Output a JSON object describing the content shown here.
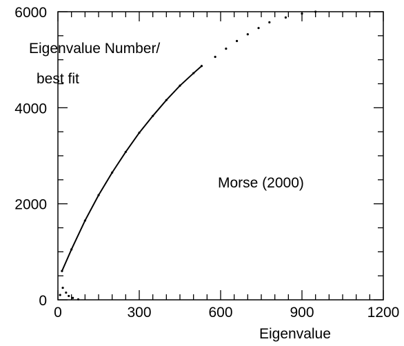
{
  "chart_data": {
    "type": "scatter",
    "title": "",
    "xlabel": "Eigenvalue",
    "ylabel": "",
    "xlim": [
      0,
      1200
    ],
    "ylim": [
      0,
      6000
    ],
    "x_ticks": [
      0,
      300,
      600,
      900,
      1200
    ],
    "y_ticks": [
      0,
      2000,
      4000,
      6000
    ],
    "x_tick_labels": [
      "0",
      "300",
      "600",
      "900",
      "1200"
    ],
    "y_tick_labels": [
      "0",
      "2000",
      "4000",
      "6000"
    ],
    "grid": false,
    "annotations": [
      {
        "text": "Eigenvalue Number/"
      },
      {
        "text": "best fit"
      },
      {
        "text": "Morse (2000)"
      }
    ],
    "series": [
      {
        "values": [
          [
            15,
            600
          ],
          [
            50,
            1050
          ],
          [
            100,
            1650
          ],
          [
            150,
            2180
          ],
          [
            200,
            2650
          ],
          [
            250,
            3080
          ],
          [
            300,
            3480
          ],
          [
            350,
            3830
          ],
          [
            400,
            4160
          ],
          [
            450,
            4460
          ],
          [
            500,
            4720
          ],
          [
            530,
            4870
          ],
          [
            580,
            5060
          ],
          [
            620,
            5230
          ],
          [
            660,
            5390
          ],
          [
            700,
            5530
          ],
          [
            740,
            5660
          ],
          [
            780,
            5780
          ],
          [
            840,
            5880
          ],
          [
            900,
            5960
          ],
          [
            950,
            6000
          ]
        ]
      },
      {
        "values": [
          [
            8,
            100
          ],
          [
            18,
            250
          ],
          [
            30,
            150
          ],
          [
            40,
            80
          ],
          [
            55,
            40
          ],
          [
            75,
            10
          ]
        ]
      }
    ]
  }
}
